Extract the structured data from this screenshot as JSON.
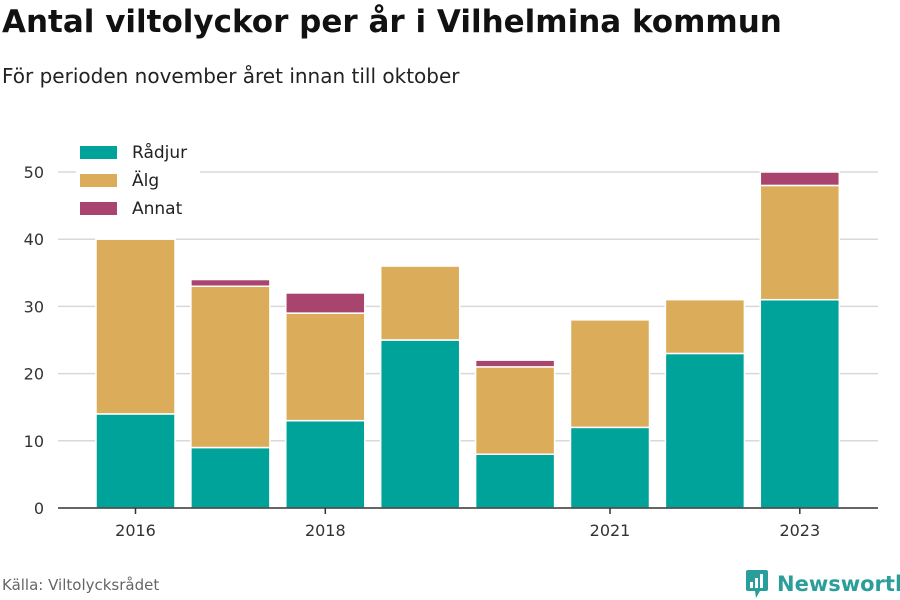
{
  "title": "Antal viltolyckor per år i Vilhelmina kommun",
  "subtitle": "För perioden november året innan till oktober",
  "source": "Källa: Viltolycksrådet",
  "brand": {
    "name": "Newsworthy",
    "icon": "newsworthy-logo-icon",
    "color": "#2a9e9b"
  },
  "colors": {
    "radjur": "#00a39a",
    "alg": "#dbad5a",
    "annat": "#a8446d",
    "grid": "#d9d9d9",
    "axis": "#333333"
  },
  "chart_data": {
    "type": "bar",
    "stacked": true,
    "categories": [
      "2016",
      "2017",
      "2018",
      "2019",
      "2020",
      "2021",
      "2022",
      "2023"
    ],
    "x_tick_labels": [
      "2016",
      "",
      "2018",
      "",
      "",
      "2021",
      "",
      "2023"
    ],
    "series": [
      {
        "name": "Rådjur",
        "color": "#00a39a",
        "values": [
          14,
          9,
          13,
          25,
          8,
          12,
          23,
          31
        ]
      },
      {
        "name": "Älg",
        "color": "#dbad5a",
        "values": [
          26,
          24,
          16,
          11,
          13,
          16,
          8,
          17
        ]
      },
      {
        "name": "Annat",
        "color": "#a8446d",
        "values": [
          0,
          1,
          3,
          0,
          1,
          0,
          0,
          2
        ]
      }
    ],
    "ylim": [
      0,
      50
    ],
    "yticks": [
      0,
      10,
      20,
      30,
      40,
      50
    ],
    "grid": true,
    "legend_position": "top-left"
  }
}
